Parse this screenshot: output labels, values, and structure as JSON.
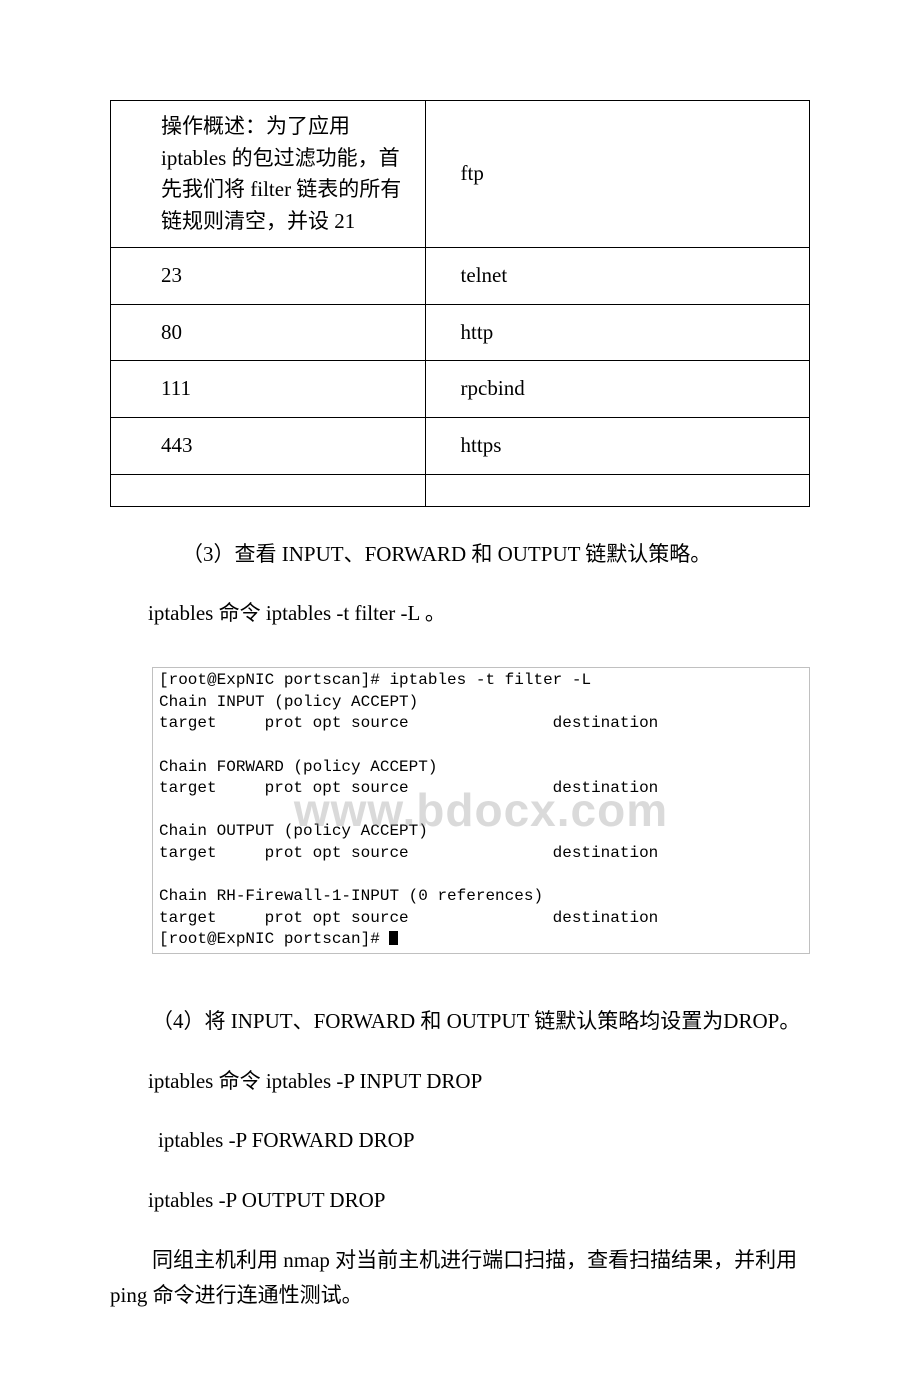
{
  "table": {
    "rows": [
      {
        "left": "操作概述：为了应用 iptables 的包过滤功能，首先我们将 filter 链表的所有链规则清空，并设 21",
        "right": "ftp",
        "leftClass": "first-left"
      },
      {
        "left": "23",
        "right": "telnet",
        "leftClass": "indent"
      },
      {
        "left": "80",
        "right": "http",
        "leftClass": "indent"
      },
      {
        "left": "111",
        "right": "rpcbind",
        "leftClass": "indent"
      },
      {
        "left": "443",
        "right": "https",
        "leftClass": "indent"
      },
      {
        "left": "",
        "right": "",
        "empty": true
      }
    ]
  },
  "para3": "（3）查看 INPUT、FORWARD 和 OUTPUT 链默认策略。",
  "para3cmd": "iptables 命令 iptables -t filter -L 。",
  "terminal": {
    "lines": [
      "[root@ExpNIC portscan]# iptables -t filter -L",
      "Chain INPUT (policy ACCEPT)",
      "target     prot opt source               destination",
      "",
      "Chain FORWARD (policy ACCEPT)",
      "target     prot opt source               destination",
      "",
      "Chain OUTPUT (policy ACCEPT)",
      "target     prot opt source               destination",
      "",
      "Chain RH-Firewall-1-INPUT (0 references)",
      "target     prot opt source               destination"
    ],
    "prompt": "[root@ExpNIC portscan]# "
  },
  "watermark": "www.bdocx.com",
  "para4a": "（4）将 INPUT、FORWARD 和 OUTPUT 链默认策略均设置为DROP。",
  "para4b": "iptables 命令 iptables -P INPUT DROP",
  "para4c": " iptables -P FORWARD DROP",
  "para4d": "iptables -P OUTPUT DROP",
  "para4e": " 同组主机利用 nmap 对当前主机进行端口扫描，查看扫描结果，并利用 ping 命令进行连通性测试。"
}
